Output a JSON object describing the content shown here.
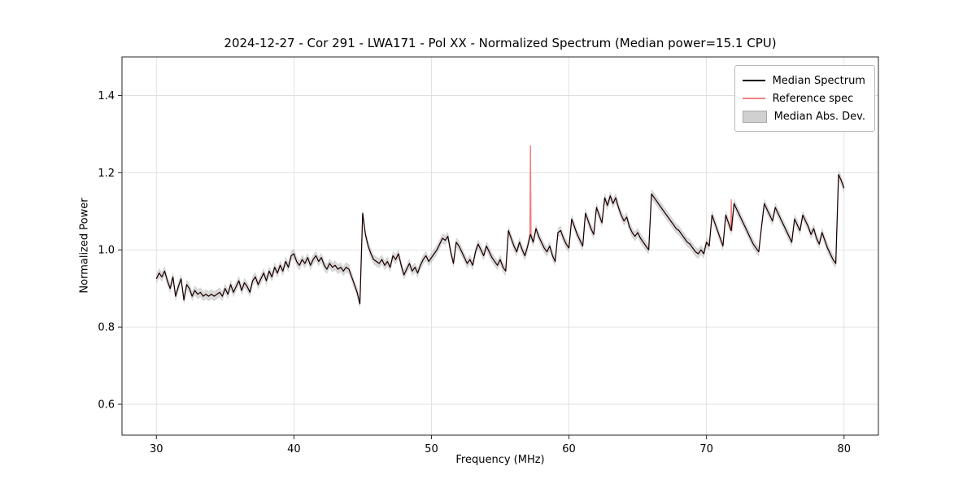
{
  "title": "2024-12-27 - Cor 291 - LWA171 - Pol XX - Normalized Spectrum (Median power=15.1 CPU)",
  "xlabel": "Frequency (MHz)",
  "ylabel": "Normalized Power",
  "legend": {
    "items": [
      {
        "label": "Median Spectrum",
        "color": "#000000",
        "type": "line"
      },
      {
        "label": "Reference spec",
        "color": "#f08080",
        "type": "line"
      },
      {
        "label": "Median Abs. Dev.",
        "color": "#c8c8c8",
        "type": "band"
      }
    ]
  },
  "chart_data": {
    "type": "line",
    "title": "2024-12-27 - Cor 291 - LWA171 - Pol XX - Normalized Spectrum (Median power=15.1 CPU)",
    "xlabel": "Frequency (MHz)",
    "ylabel": "Normalized Power",
    "xlim": [
      27.5,
      82.5
    ],
    "ylim": [
      0.52,
      1.5
    ],
    "xticks": [
      30,
      40,
      50,
      60,
      70,
      80
    ],
    "yticks": [
      0.6,
      0.8,
      1.0,
      1.2,
      1.4
    ],
    "grid": true,
    "grid_color": "#dcdcdc",
    "legend_position": "upper right",
    "mad_halfwidth": 0.013,
    "mad_color": "#a8a8a8",
    "series": [
      {
        "name": "Median Spectrum",
        "color": "#000000",
        "x_start": 30.0,
        "x_step": 0.2,
        "y": [
          0.925,
          0.94,
          0.93,
          0.945,
          0.92,
          0.9,
          0.93,
          0.88,
          0.905,
          0.925,
          0.87,
          0.91,
          0.9,
          0.88,
          0.895,
          0.885,
          0.89,
          0.88,
          0.885,
          0.88,
          0.885,
          0.88,
          0.885,
          0.89,
          0.88,
          0.9,
          0.885,
          0.91,
          0.89,
          0.905,
          0.92,
          0.895,
          0.915,
          0.905,
          0.89,
          0.92,
          0.93,
          0.91,
          0.925,
          0.94,
          0.92,
          0.945,
          0.93,
          0.955,
          0.94,
          0.96,
          0.945,
          0.97,
          0.955,
          0.985,
          0.99,
          0.97,
          0.96,
          0.975,
          0.965,
          0.98,
          0.96,
          0.975,
          0.985,
          0.97,
          0.98,
          0.96,
          0.95,
          0.965,
          0.955,
          0.96,
          0.95,
          0.955,
          0.945,
          0.955,
          0.95,
          0.93,
          0.91,
          0.89,
          0.86,
          1.095,
          1.04,
          1.01,
          0.99,
          0.975,
          0.97,
          0.965,
          0.975,
          0.96,
          0.97,
          0.955,
          0.985,
          0.975,
          0.99,
          0.96,
          0.935,
          0.95,
          0.965,
          0.945,
          0.955,
          0.94,
          0.96,
          0.975,
          0.985,
          0.97,
          0.98,
          0.99,
          1.0,
          1.015,
          1.03,
          1.025,
          1.035,
          0.995,
          0.965,
          1.02,
          1.01,
          0.995,
          0.98,
          0.965,
          0.975,
          0.96,
          0.995,
          1.015,
          1.0,
          0.985,
          1.01,
          0.995,
          0.98,
          0.97,
          0.96,
          0.975,
          0.955,
          0.945,
          1.05,
          1.03,
          1.01,
          0.995,
          1.02,
          1.0,
          0.985,
          1.01,
          1.04,
          1.02,
          1.055,
          1.035,
          1.02,
          1.005,
          0.995,
          1.01,
          0.985,
          0.97,
          1.045,
          1.05,
          1.03,
          1.015,
          1.005,
          1.08,
          1.06,
          1.04,
          1.025,
          1.01,
          1.095,
          1.075,
          1.055,
          1.04,
          1.11,
          1.09,
          1.07,
          1.135,
          1.115,
          1.14,
          1.12,
          1.135,
          1.11,
          1.09,
          1.075,
          1.085,
          1.06,
          1.045,
          1.035,
          1.045,
          1.03,
          1.02,
          1.01,
          1.0,
          1.145,
          1.135,
          1.125,
          1.115,
          1.105,
          1.095,
          1.085,
          1.075,
          1.065,
          1.055,
          1.05,
          1.04,
          1.03,
          1.02,
          1.015,
          1.005,
          0.995,
          0.99,
          1.0,
          0.99,
          1.02,
          1.01,
          1.09,
          1.07,
          1.05,
          1.03,
          1.01,
          1.09,
          1.07,
          1.05,
          1.12,
          1.105,
          1.09,
          1.075,
          1.06,
          1.045,
          1.03,
          1.015,
          1.005,
          0.995,
          1.06,
          1.12,
          1.105,
          1.09,
          1.075,
          1.11,
          1.095,
          1.08,
          1.065,
          1.05,
          1.035,
          1.02,
          1.08,
          1.065,
          1.05,
          1.09,
          1.075,
          1.06,
          1.04,
          1.055,
          1.03,
          1.015,
          1.045,
          1.025,
          1.005,
          0.99,
          0.975,
          0.965,
          1.195,
          1.18,
          1.16
        ]
      },
      {
        "name": "Reference spec",
        "color": "#f08080",
        "follows_median": true,
        "spikes": [
          {
            "x": 57.2,
            "y": 1.27
          },
          {
            "x": 71.8,
            "y": 1.13
          }
        ]
      }
    ]
  }
}
